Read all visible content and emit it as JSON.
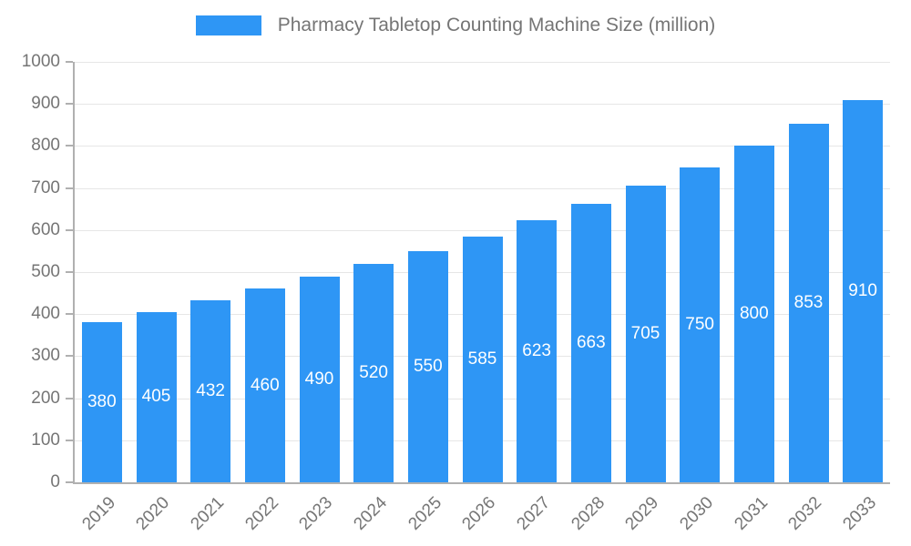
{
  "legend": {
    "label": "Pharmacy Tabletop Counting Machine Size (million)",
    "swatch_color": "#2E96F5"
  },
  "chart_data": {
    "type": "bar",
    "title": "Pharmacy Tabletop Counting Machine Size (million)",
    "categories": [
      "2019",
      "2020",
      "2021",
      "2022",
      "2023",
      "2024",
      "2025",
      "2026",
      "2027",
      "2028",
      "2029",
      "2030",
      "2031",
      "2032",
      "2033"
    ],
    "values": [
      380,
      405,
      432,
      460,
      490,
      520,
      550,
      585,
      623,
      663,
      705,
      750,
      800,
      853,
      910
    ],
    "xlabel": "",
    "ylabel": "",
    "ylim": [
      0,
      1000
    ],
    "yticks": [
      0,
      100,
      200,
      300,
      400,
      500,
      600,
      700,
      800,
      900,
      1000
    ],
    "grid": true,
    "legend_position": "top",
    "bar_color": "#2E96F5",
    "value_label_color": "#ffffff",
    "axis_color": "#b0b0b0",
    "grid_color": "#e6e6e6",
    "text_color": "#757575"
  }
}
